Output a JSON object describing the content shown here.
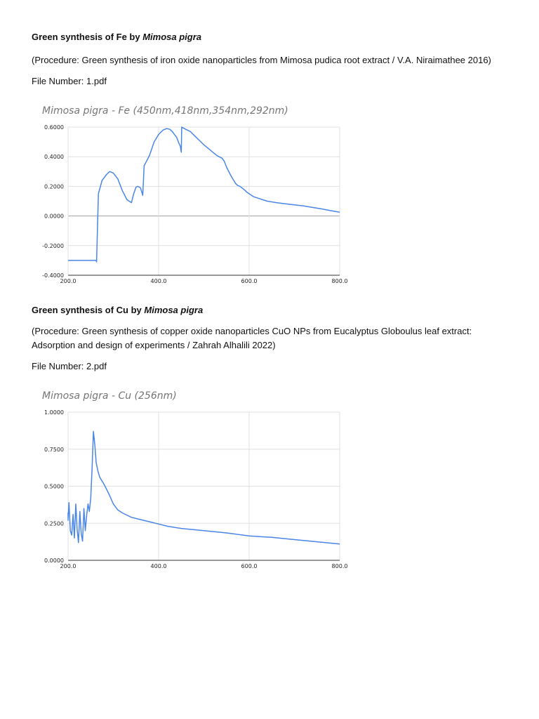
{
  "sections": [
    {
      "heading_prefix": "Green synthesis of Fe by ",
      "heading_species": "Mimosa pigra",
      "procedure": "(Procedure: Green synthesis of iron oxide nanoparticles from Mimosa pudica root extract / V.A. Niraimathee 2016)",
      "file_number": "File Number: 1.pdf"
    },
    {
      "heading_prefix": "Green synthesis of Cu by ",
      "heading_species": "Mimosa pigra",
      "procedure": "(Procedure: Green synthesis of copper oxide nanoparticles CuO NPs from Eucalyptus Globoulus leaf extract: Adsorption and design of experiments / Zahrah Alhalili 2022)",
      "file_number": "File Number: 2.pdf"
    }
  ],
  "chart_data": [
    {
      "type": "line",
      "title": "Mimosa pigra - Fe (450nm,418nm,354nm,292nm)",
      "xlabel": "",
      "ylabel": "",
      "xlim": [
        200,
        800
      ],
      "ylim": [
        -0.4,
        0.6
      ],
      "x_ticks": [
        200,
        400,
        600,
        800
      ],
      "x_tick_labels": [
        "200.0",
        "400.0",
        "600.0",
        "800.0"
      ],
      "y_ticks": [
        -0.4,
        -0.2,
        0.0,
        0.2,
        0.4,
        0.6
      ],
      "y_tick_labels": [
        "-0.4000",
        "-0.2000",
        "0.0000",
        "0.2000",
        "0.4000",
        "0.6000"
      ],
      "grid": true,
      "line_color": "#4a86e8",
      "series": [
        {
          "x": [
            200,
            262,
            263,
            267,
            275,
            285,
            292,
            300,
            310,
            320,
            330,
            340,
            345,
            350,
            354,
            360,
            365,
            368,
            370,
            380,
            390,
            400,
            410,
            418,
            425,
            430,
            440,
            445,
            448,
            450,
            451,
            460,
            470,
            480,
            490,
            500,
            510,
            520,
            530,
            540,
            545,
            550,
            560,
            570,
            575,
            580,
            590,
            595,
            600,
            610,
            620,
            640,
            660,
            680,
            700,
            720,
            740,
            760,
            780,
            800
          ],
          "y": [
            -0.3,
            -0.3,
            -0.31,
            0.15,
            0.24,
            0.28,
            0.3,
            0.29,
            0.25,
            0.17,
            0.11,
            0.09,
            0.15,
            0.195,
            0.2,
            0.19,
            0.14,
            0.34,
            0.35,
            0.41,
            0.5,
            0.55,
            0.58,
            0.59,
            0.585,
            0.57,
            0.53,
            0.49,
            0.47,
            0.43,
            0.6,
            0.585,
            0.57,
            0.54,
            0.51,
            0.48,
            0.455,
            0.43,
            0.405,
            0.39,
            0.37,
            0.33,
            0.27,
            0.22,
            0.205,
            0.2,
            0.175,
            0.16,
            0.15,
            0.13,
            0.12,
            0.1,
            0.09,
            0.082,
            0.075,
            0.068,
            0.058,
            0.048,
            0.036,
            0.025
          ]
        }
      ]
    },
    {
      "type": "line",
      "title": "Mimosa pigra - Cu (256nm)",
      "xlabel": "",
      "ylabel": "",
      "xlim": [
        200,
        800
      ],
      "ylim": [
        0,
        1.0
      ],
      "x_ticks": [
        200,
        400,
        600,
        800
      ],
      "x_tick_labels": [
        "200.0",
        "400.0",
        "600.0",
        "800.0"
      ],
      "y_ticks": [
        0,
        0.25,
        0.5,
        0.75,
        1.0
      ],
      "y_tick_labels": [
        "0.0000",
        "0.2500",
        "0.5000",
        "0.7500",
        "1.0000"
      ],
      "grid": true,
      "line_color": "#4a86e8",
      "series": [
        {
          "x": [
            190,
            193,
            196,
            199,
            202,
            205,
            208,
            211,
            214,
            217,
            220,
            223,
            226,
            229,
            232,
            235,
            238,
            241,
            244,
            247,
            250,
            253,
            256,
            259,
            262,
            266,
            270,
            280,
            290,
            300,
            310,
            320,
            340,
            360,
            380,
            400,
            420,
            450,
            500,
            550,
            600,
            650,
            700,
            750,
            800
          ],
          "y": [
            0.3,
            0.27,
            0.32,
            0.28,
            0.39,
            0.2,
            0.17,
            0.31,
            0.15,
            0.38,
            0.21,
            0.12,
            0.33,
            0.18,
            0.13,
            0.35,
            0.2,
            0.3,
            0.38,
            0.33,
            0.42,
            0.62,
            0.87,
            0.78,
            0.66,
            0.6,
            0.56,
            0.51,
            0.45,
            0.38,
            0.34,
            0.32,
            0.29,
            0.275,
            0.26,
            0.245,
            0.23,
            0.215,
            0.2,
            0.185,
            0.165,
            0.155,
            0.14,
            0.125,
            0.11
          ]
        }
      ]
    }
  ]
}
